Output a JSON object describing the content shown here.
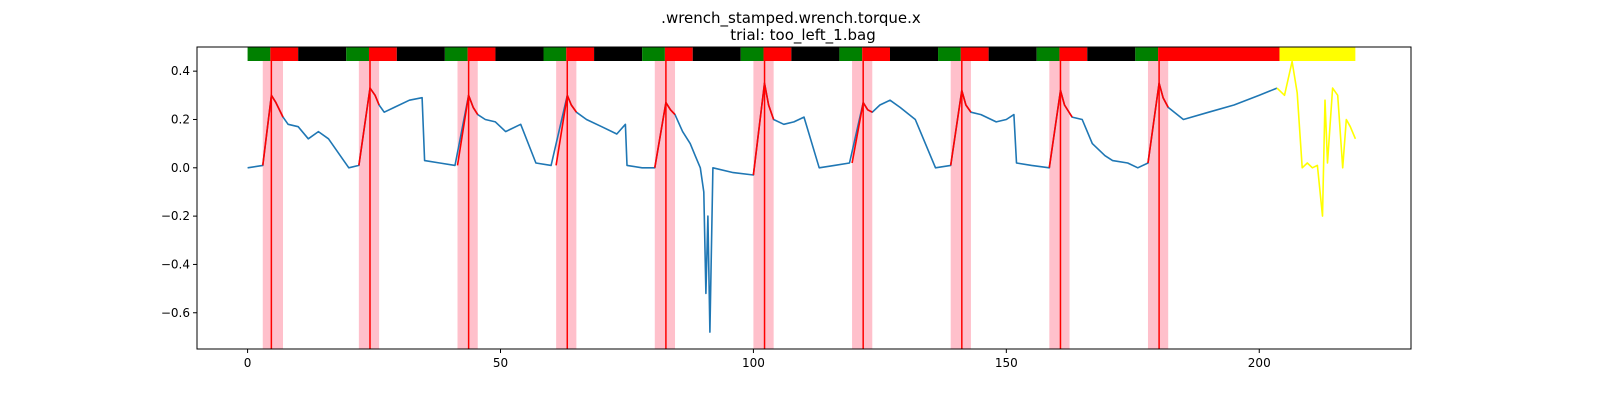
{
  "chart_data": {
    "type": "line",
    "title": ".wrench_stamped.wrench.torque.x",
    "subtitle": "trial: too_left_1.bag",
    "xlabel": "",
    "ylabel": "",
    "xlim": [
      -10,
      230
    ],
    "ylim": [
      -0.75,
      0.5
    ],
    "xticks": [
      0,
      50,
      100,
      150,
      200
    ],
    "yticks": [
      -0.6,
      -0.4,
      -0.2,
      0.0,
      0.2,
      0.4
    ],
    "ytick_labels": [
      "−0.6",
      "−0.4",
      "−0.2",
      "0.0",
      "0.2",
      "0.4"
    ],
    "grid": false,
    "colors": {
      "main_series": "#1f77b4",
      "highlight_series": "#ff0000",
      "final_series": "#ffff00",
      "event_band": "#ffc0cb",
      "event_line": "#ff0000",
      "phase_green": "#008000",
      "phase_red": "#ff0000",
      "phase_black": "#000000",
      "phase_yellow": "#ffff00"
    },
    "phase_bar": [
      {
        "start": 0.0,
        "end": 4.5,
        "color": "green"
      },
      {
        "start": 4.5,
        "end": 10.0,
        "color": "red"
      },
      {
        "start": 10.0,
        "end": 19.5,
        "color": "black"
      },
      {
        "start": 19.5,
        "end": 24.0,
        "color": "green"
      },
      {
        "start": 24.0,
        "end": 29.5,
        "color": "red"
      },
      {
        "start": 29.5,
        "end": 39.0,
        "color": "black"
      },
      {
        "start": 39.0,
        "end": 43.5,
        "color": "green"
      },
      {
        "start": 43.5,
        "end": 49.0,
        "color": "red"
      },
      {
        "start": 49.0,
        "end": 58.5,
        "color": "black"
      },
      {
        "start": 58.5,
        "end": 63.0,
        "color": "green"
      },
      {
        "start": 63.0,
        "end": 68.5,
        "color": "red"
      },
      {
        "start": 68.5,
        "end": 78.0,
        "color": "black"
      },
      {
        "start": 78.0,
        "end": 82.5,
        "color": "green"
      },
      {
        "start": 82.5,
        "end": 88.0,
        "color": "red"
      },
      {
        "start": 88.0,
        "end": 97.5,
        "color": "black"
      },
      {
        "start": 97.5,
        "end": 102.0,
        "color": "green"
      },
      {
        "start": 102.0,
        "end": 107.5,
        "color": "red"
      },
      {
        "start": 107.5,
        "end": 117.0,
        "color": "black"
      },
      {
        "start": 117.0,
        "end": 121.5,
        "color": "green"
      },
      {
        "start": 121.5,
        "end": 127.0,
        "color": "red"
      },
      {
        "start": 127.0,
        "end": 136.5,
        "color": "black"
      },
      {
        "start": 136.5,
        "end": 141.0,
        "color": "green"
      },
      {
        "start": 141.0,
        "end": 146.5,
        "color": "red"
      },
      {
        "start": 146.5,
        "end": 156.0,
        "color": "black"
      },
      {
        "start": 156.0,
        "end": 160.5,
        "color": "green"
      },
      {
        "start": 160.5,
        "end": 166.0,
        "color": "red"
      },
      {
        "start": 166.0,
        "end": 175.5,
        "color": "black"
      },
      {
        "start": 175.5,
        "end": 180.0,
        "color": "green"
      },
      {
        "start": 180.0,
        "end": 204.0,
        "color": "red"
      },
      {
        "start": 204.0,
        "end": 219.0,
        "color": "yellow"
      }
    ],
    "event_bands": [
      {
        "start": 3.0,
        "end": 7.0,
        "line": 4.7
      },
      {
        "start": 22.0,
        "end": 26.0,
        "line": 24.2
      },
      {
        "start": 41.5,
        "end": 45.5,
        "line": 43.7
      },
      {
        "start": 61.0,
        "end": 65.0,
        "line": 63.2
      },
      {
        "start": 80.5,
        "end": 84.5,
        "line": 82.7
      },
      {
        "start": 100.0,
        "end": 104.0,
        "line": 102.2
      },
      {
        "start": 119.5,
        "end": 123.5,
        "line": 121.7
      },
      {
        "start": 139.0,
        "end": 143.0,
        "line": 141.2
      },
      {
        "start": 158.5,
        "end": 162.5,
        "line": 160.7
      },
      {
        "start": 178.0,
        "end": 182.0,
        "line": 180.2
      }
    ],
    "series": [
      {
        "color": "main_series",
        "x": [
          0,
          3,
          4.7,
          5.6,
          7,
          8,
          10,
          12,
          14,
          16,
          19,
          20,
          22,
          24.2,
          25.2,
          26,
          27,
          29,
          32,
          34.5,
          35,
          38,
          41,
          43.7,
          44.6,
          45.5,
          47,
          49,
          51,
          54,
          57,
          60,
          63.2,
          64,
          65,
          67,
          70,
          73,
          74.7,
          75,
          78,
          80.5,
          82.7,
          83.6,
          84.5,
          86,
          87.5,
          88.5,
          89.5,
          90.2,
          90.6,
          91.0,
          91.4,
          92,
          96,
          100,
          102.2,
          103,
          104,
          106,
          108,
          110,
          113,
          116,
          119,
          121.7,
          122.6,
          123.5,
          125,
          127,
          129,
          132,
          136,
          139,
          141.2,
          142,
          143,
          145,
          148,
          150,
          151.5,
          152,
          155,
          158.5,
          160.7,
          161.5,
          163,
          165,
          167,
          169.5,
          171,
          174,
          176,
          178,
          180.2,
          181,
          182,
          185,
          190,
          195,
          200,
          203.5
        ],
        "y": [
          0.0,
          0.01,
          0.3,
          0.27,
          0.21,
          0.18,
          0.17,
          0.12,
          0.15,
          0.12,
          0.03,
          0.0,
          0.01,
          0.33,
          0.3,
          0.26,
          0.23,
          0.25,
          0.28,
          0.29,
          0.03,
          0.02,
          0.01,
          0.3,
          0.25,
          0.22,
          0.2,
          0.19,
          0.15,
          0.18,
          0.02,
          0.01,
          0.3,
          0.26,
          0.23,
          0.2,
          0.17,
          0.14,
          0.18,
          0.01,
          0.0,
          0.0,
          0.27,
          0.24,
          0.22,
          0.15,
          0.1,
          0.05,
          0.0,
          -0.1,
          -0.52,
          -0.2,
          -0.68,
          0.0,
          -0.02,
          -0.03,
          0.35,
          0.26,
          0.2,
          0.18,
          0.19,
          0.21,
          0.0,
          0.01,
          0.02,
          0.27,
          0.24,
          0.23,
          0.26,
          0.28,
          0.25,
          0.2,
          0.0,
          0.01,
          0.32,
          0.26,
          0.23,
          0.22,
          0.19,
          0.2,
          0.22,
          0.02,
          0.01,
          0.0,
          0.32,
          0.26,
          0.21,
          0.2,
          0.1,
          0.05,
          0.03,
          0.02,
          0.0,
          0.02,
          0.35,
          0.29,
          0.25,
          0.2,
          0.23,
          0.26,
          0.3,
          0.33
        ]
      },
      {
        "color": "highlight_series",
        "segments": [
          {
            "x": [
              3,
              4.7,
              5.6,
              7
            ],
            "y": [
              0.01,
              0.3,
              0.27,
              0.21
            ]
          },
          {
            "x": [
              22,
              24.2,
              25.2,
              26
            ],
            "y": [
              0.01,
              0.33,
              0.3,
              0.26
            ]
          },
          {
            "x": [
              41.5,
              43.7,
              44.6,
              45.5
            ],
            "y": [
              0.01,
              0.3,
              0.25,
              0.22
            ]
          },
          {
            "x": [
              61,
              63.2,
              64,
              65
            ],
            "y": [
              0.01,
              0.3,
              0.26,
              0.23
            ]
          },
          {
            "x": [
              80.5,
              82.7,
              83.6,
              84.5
            ],
            "y": [
              0.0,
              0.27,
              0.24,
              0.22
            ]
          },
          {
            "x": [
              100,
              102.2,
              103,
              104
            ],
            "y": [
              -0.03,
              0.35,
              0.26,
              0.2
            ]
          },
          {
            "x": [
              119.5,
              121.7,
              122.6,
              123.5
            ],
            "y": [
              0.02,
              0.27,
              0.24,
              0.23
            ]
          },
          {
            "x": [
              139,
              141.2,
              142,
              143
            ],
            "y": [
              0.01,
              0.32,
              0.26,
              0.23
            ]
          },
          {
            "x": [
              158.5,
              160.7,
              161.5,
              163
            ],
            "y": [
              0.0,
              0.32,
              0.26,
              0.21
            ]
          },
          {
            "x": [
              178,
              180.2,
              181,
              182
            ],
            "y": [
              0.02,
              0.35,
              0.29,
              0.25
            ]
          }
        ]
      },
      {
        "color": "final_series",
        "x": [
          203.5,
          205,
          206.5,
          207.5,
          208.5,
          209.5,
          210.5,
          211.5,
          212.5,
          213,
          213.5,
          214.5,
          215.5,
          216.5,
          217.2,
          218,
          219
        ],
        "y": [
          0.33,
          0.3,
          0.44,
          0.31,
          0.0,
          0.02,
          0.0,
          0.01,
          -0.2,
          0.28,
          0.02,
          0.33,
          0.3,
          0.0,
          0.2,
          0.17,
          0.12
        ]
      }
    ]
  }
}
